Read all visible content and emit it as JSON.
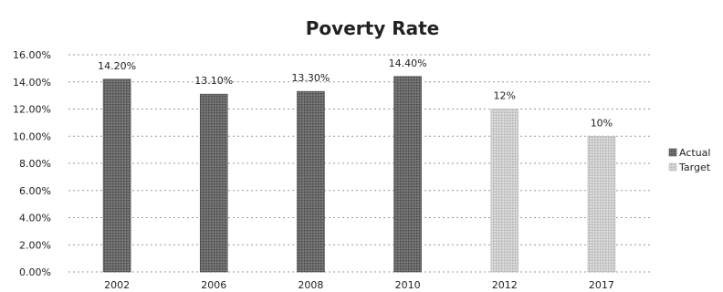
{
  "chart_data": {
    "type": "bar",
    "title": "Poverty Rate",
    "categories": [
      "2002",
      "2006",
      "2008",
      "2010",
      "2012",
      "2017"
    ],
    "series": [
      {
        "name": "Actual",
        "values": [
          14.2,
          13.1,
          13.3,
          14.4,
          null,
          null
        ],
        "labels": [
          "14.20%",
          "13.10%",
          "13.30%",
          "14.40%",
          "",
          ""
        ],
        "color": "#6a6a6a"
      },
      {
        "name": "Target",
        "values": [
          null,
          null,
          null,
          null,
          12,
          10
        ],
        "labels": [
          "",
          "",
          "",
          "",
          "12%",
          "10%"
        ],
        "color": "#cfcfcf"
      }
    ],
    "ylim": [
      0,
      16
    ],
    "yticks": [
      "0.00%",
      "2.00%",
      "4.00%",
      "6.00%",
      "8.00%",
      "10.00%",
      "12.00%",
      "14.00%",
      "16.00%"
    ],
    "ytick_values": [
      0,
      2,
      4,
      6,
      8,
      10,
      12,
      14,
      16
    ],
    "grid": true,
    "legend_position": "right"
  }
}
